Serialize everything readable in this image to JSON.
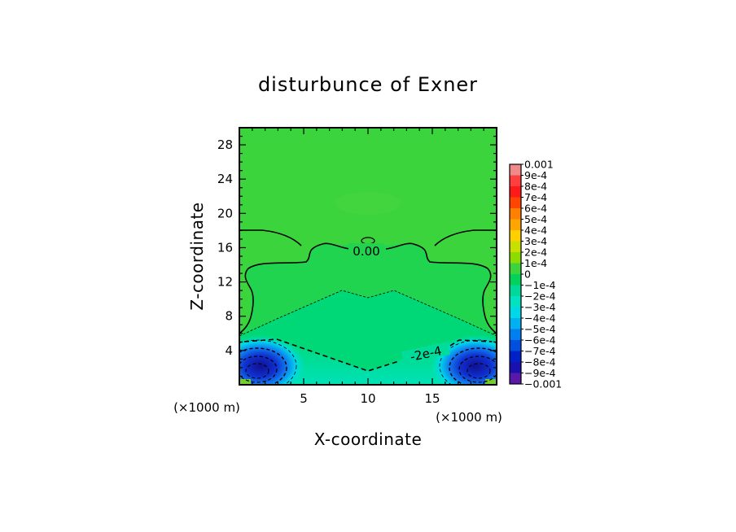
{
  "chart_data": {
    "type": "heatmap",
    "title": "disturbunce of Exner",
    "xlabel": "X-coordinate",
    "ylabel": "Z-coordinate",
    "x_unit_left": "(×1000 m)",
    "x_unit_right": "(×1000 m)",
    "xlim": [
      0,
      20
    ],
    "ylim": [
      0,
      30
    ],
    "x_ticks": [
      5,
      10,
      15
    ],
    "y_ticks": [
      4,
      8,
      12,
      16,
      20,
      24,
      28
    ],
    "colorbar": {
      "levels": [
        "0.001",
        "9e-4",
        "8e-4",
        "7e-4",
        "6e-4",
        "5e-4",
        "4e-4",
        "3e-4",
        "2e-4",
        "1e-4",
        "0",
        "-1e-4",
        "-2e-4",
        "-3e-4",
        "-4e-4",
        "-5e-4",
        "-6e-4",
        "-7e-4",
        "-8e-4",
        "-9e-4",
        "-0.001"
      ],
      "colors": [
        "#f08a8a",
        "#ff3f3f",
        "#ff1a1a",
        "#ff4500",
        "#ff7f00",
        "#ffa500",
        "#ffd000",
        "#c8e000",
        "#8cdc00",
        "#3cd43c",
        "#00d25a",
        "#00d89a",
        "#00e2c0",
        "#00d8e8",
        "#00b0f0",
        "#0080f0",
        "#0050e0",
        "#0020c8",
        "#1a10b0",
        "#5a18a8"
      ]
    },
    "contour_labels": [
      "0.00",
      "-2e-4"
    ]
  }
}
